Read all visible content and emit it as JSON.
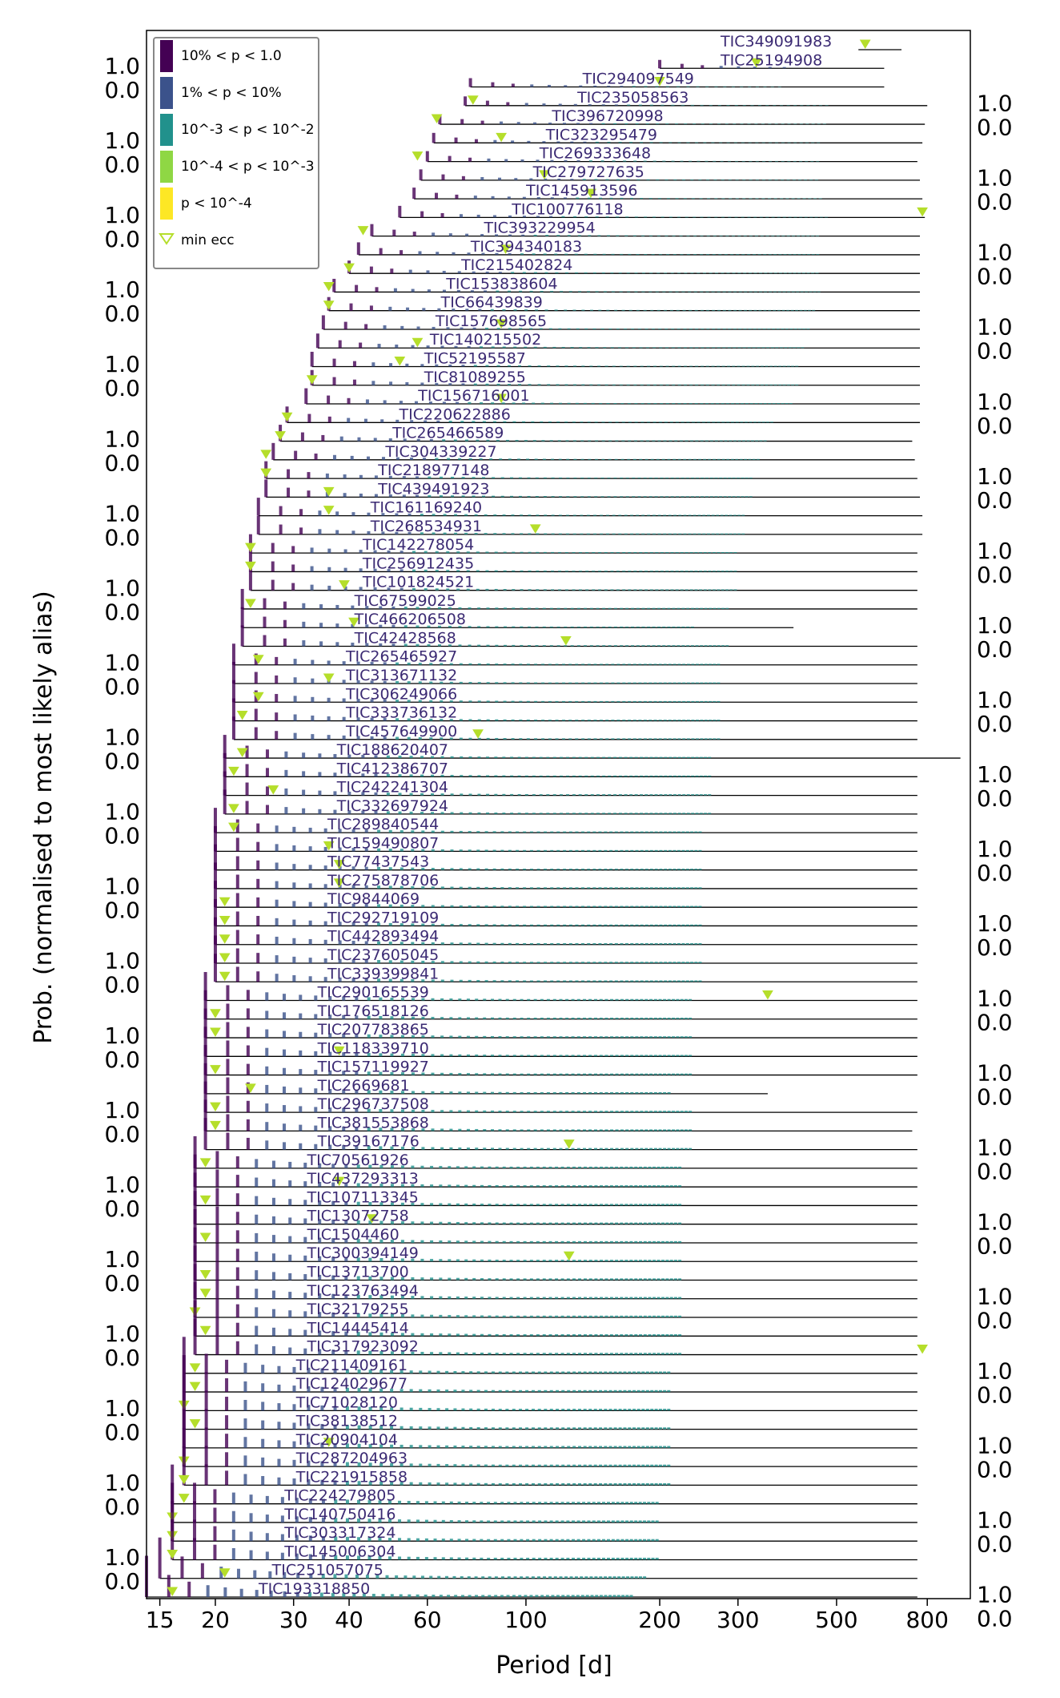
{
  "chart_data": {
    "type": "bar",
    "xlabel": "Period [d]",
    "ylabel": "Prob. (normalised to most likely alias)",
    "xscale": "log",
    "xlim": [
      14,
      1000
    ],
    "xticks": [
      15,
      20,
      30,
      40,
      60,
      100,
      200,
      300,
      500,
      800
    ],
    "xtick_labels": [
      "15",
      "20",
      "30",
      "40",
      "60",
      "100",
      "200",
      "300",
      "500",
      "800"
    ],
    "ytick_labels": [
      "1.0",
      "0.0"
    ],
    "grid": false,
    "legend_position": "top-left",
    "legend": [
      {
        "label": "10% < p < 1.0",
        "color": "#440154"
      },
      {
        "label": "1% < p < 10%",
        "color": "#3b528b"
      },
      {
        "label": "10^-3 < p < 10^-2",
        "color": "#21918c"
      },
      {
        "label": "10^-4 < p < 10^-3",
        "color": "#8fd744"
      },
      {
        "label": "p < 10^-4",
        "color": "#fde725"
      },
      {
        "label": "min ecc",
        "marker": "triangle-down-open",
        "color": "#b5de2b"
      }
    ],
    "series": [
      {
        "name": "TIC349091983",
        "min_period": 560,
        "max_period": 700,
        "min_ecc_period": 580
      },
      {
        "name": "TIC25194908",
        "min_period": 200,
        "max_period": 640,
        "min_ecc_period": 330
      },
      {
        "name": "TIC294097549",
        "min_period": 75,
        "max_period": 640,
        "min_ecc_period": 200
      },
      {
        "name": "TIC235058563",
        "min_period": 73,
        "max_period": 800,
        "min_ecc_period": 76
      },
      {
        "name": "TIC396720998",
        "min_period": 64,
        "max_period": 790,
        "min_ecc_period": 63
      },
      {
        "name": "TIC323295479",
        "min_period": 62,
        "max_period": 780,
        "min_ecc_period": 88
      },
      {
        "name": "TIC269333648",
        "min_period": 60,
        "max_period": 760,
        "min_ecc_period": 57
      },
      {
        "name": "TIC279727635",
        "min_period": 58,
        "max_period": 770,
        "min_ecc_period": 110
      },
      {
        "name": "TIC145913596",
        "min_period": 56,
        "max_period": 780,
        "min_ecc_period": 140
      },
      {
        "name": "TIC100776118",
        "min_period": 52,
        "max_period": 790,
        "min_ecc_period": 780
      },
      {
        "name": "TIC393229954",
        "min_period": 45,
        "max_period": 770,
        "min_ecc_period": 43
      },
      {
        "name": "TIC394340183",
        "min_period": 42,
        "max_period": 770,
        "min_ecc_period": 90
      },
      {
        "name": "TIC215402824",
        "min_period": 40,
        "max_period": 770,
        "min_ecc_period": 40
      },
      {
        "name": "TIC153838604",
        "min_period": 37,
        "max_period": 770,
        "min_ecc_period": 36
      },
      {
        "name": "TIC66439839",
        "min_period": 36,
        "max_period": 770,
        "min_ecc_period": 36
      },
      {
        "name": "TIC157698565",
        "min_period": 35,
        "max_period": 770,
        "min_ecc_period": 88
      },
      {
        "name": "TIC140215502",
        "min_period": 34,
        "max_period": 770,
        "min_ecc_period": 57
      },
      {
        "name": "TIC52195587",
        "min_period": 33,
        "max_period": 770,
        "min_ecc_period": 52
      },
      {
        "name": "TIC81089255",
        "min_period": 33,
        "max_period": 770,
        "min_ecc_period": 33
      },
      {
        "name": "TIC156716001",
        "min_period": 32,
        "max_period": 770,
        "min_ecc_period": 88
      },
      {
        "name": "TIC220622886",
        "min_period": 29,
        "max_period": 770,
        "min_ecc_period": 29
      },
      {
        "name": "TIC265466589",
        "min_period": 28,
        "max_period": 740,
        "min_ecc_period": 28
      },
      {
        "name": "TIC304339227",
        "min_period": 27,
        "max_period": 750,
        "min_ecc_period": 26
      },
      {
        "name": "TIC218977148",
        "min_period": 26,
        "max_period": 760,
        "min_ecc_period": 26
      },
      {
        "name": "TIC439491923",
        "min_period": 26,
        "max_period": 770,
        "min_ecc_period": 36
      },
      {
        "name": "TIC161169240",
        "min_period": 25,
        "max_period": 780,
        "min_ecc_period": 36
      },
      {
        "name": "TIC268534931",
        "min_period": 25,
        "max_period": 780,
        "min_ecc_period": 105
      },
      {
        "name": "TIC142278054",
        "min_period": 24,
        "max_period": 760,
        "min_ecc_period": 24
      },
      {
        "name": "TIC256912435",
        "min_period": 24,
        "max_period": 760,
        "min_ecc_period": 24
      },
      {
        "name": "TIC101824521",
        "min_period": 24,
        "max_period": 760,
        "min_ecc_period": 39
      },
      {
        "name": "TIC67599025",
        "min_period": 23,
        "max_period": 760,
        "min_ecc_period": 24
      },
      {
        "name": "TIC466206508",
        "min_period": 23,
        "max_period": 400,
        "min_ecc_period": 41
      },
      {
        "name": "TIC42428568",
        "min_period": 23,
        "max_period": 760,
        "min_ecc_period": 123
      },
      {
        "name": "TIC265465927",
        "min_period": 22,
        "max_period": 760,
        "min_ecc_period": 25
      },
      {
        "name": "TIC313671132",
        "min_period": 22,
        "max_period": 760,
        "min_ecc_period": 36
      },
      {
        "name": "TIC306249066",
        "min_period": 22,
        "max_period": 760,
        "min_ecc_period": 25
      },
      {
        "name": "TIC333736132",
        "min_period": 22,
        "max_period": 760,
        "min_ecc_period": 23
      },
      {
        "name": "TIC457649900",
        "min_period": 22,
        "max_period": 760,
        "min_ecc_period": 78
      },
      {
        "name": "TIC188620407",
        "min_period": 21,
        "max_period": 950,
        "min_ecc_period": 23
      },
      {
        "name": "TIC412386707",
        "min_period": 21,
        "max_period": 760,
        "min_ecc_period": 22
      },
      {
        "name": "TIC242241304",
        "min_period": 21,
        "max_period": 760,
        "min_ecc_period": 27
      },
      {
        "name": "TIC332697924",
        "min_period": 21,
        "max_period": 760,
        "min_ecc_period": 22
      },
      {
        "name": "TIC289840544",
        "min_period": 20,
        "max_period": 760,
        "min_ecc_period": 22
      },
      {
        "name": "TIC159490807",
        "min_period": 20,
        "max_period": 760,
        "min_ecc_period": 36
      },
      {
        "name": "TIC77437543",
        "min_period": 20,
        "max_period": 760,
        "min_ecc_period": 38
      },
      {
        "name": "TIC275878706",
        "min_period": 20,
        "max_period": 760,
        "min_ecc_period": 38
      },
      {
        "name": "TIC9844069",
        "min_period": 20,
        "max_period": 760,
        "min_ecc_period": 21
      },
      {
        "name": "TIC292719109",
        "min_period": 20,
        "max_period": 760,
        "min_ecc_period": 21
      },
      {
        "name": "TIC442893494",
        "min_period": 20,
        "max_period": 760,
        "min_ecc_period": 21
      },
      {
        "name": "TIC237605045",
        "min_period": 20,
        "max_period": 760,
        "min_ecc_period": 21
      },
      {
        "name": "TIC339399841",
        "min_period": 20,
        "max_period": 760,
        "min_ecc_period": 21
      },
      {
        "name": "TIC290165539",
        "min_period": 19,
        "max_period": 760,
        "min_ecc_period": 350
      },
      {
        "name": "TIC176518126",
        "min_period": 19,
        "max_period": 760,
        "min_ecc_period": 20
      },
      {
        "name": "TIC207783865",
        "min_period": 19,
        "max_period": 760,
        "min_ecc_period": 20
      },
      {
        "name": "TIC118339710",
        "min_period": 19,
        "max_period": 760,
        "min_ecc_period": 38
      },
      {
        "name": "TIC157119927",
        "min_period": 19,
        "max_period": 760,
        "min_ecc_period": 20
      },
      {
        "name": "TIC2669681",
        "min_period": 19,
        "max_period": 350,
        "min_ecc_period": 24
      },
      {
        "name": "TIC296737508",
        "min_period": 19,
        "max_period": 760,
        "min_ecc_period": 20
      },
      {
        "name": "TIC381553868",
        "min_period": 19,
        "max_period": 740,
        "min_ecc_period": 20
      },
      {
        "name": "TIC39167176",
        "min_period": 19,
        "max_period": 760,
        "min_ecc_period": 125
      },
      {
        "name": "TIC70561926",
        "min_period": 18,
        "max_period": 760,
        "min_ecc_period": 19
      },
      {
        "name": "TIC437293313",
        "min_period": 18,
        "max_period": 760,
        "min_ecc_period": 38
      },
      {
        "name": "TIC107113345",
        "min_period": 18,
        "max_period": 760,
        "min_ecc_period": 19
      },
      {
        "name": "TIC13072758",
        "min_period": 18,
        "max_period": 760,
        "min_ecc_period": 45
      },
      {
        "name": "TIC1504460",
        "min_period": 18,
        "max_period": 760,
        "min_ecc_period": 19
      },
      {
        "name": "TIC300394149",
        "min_period": 18,
        "max_period": 760,
        "min_ecc_period": 125
      },
      {
        "name": "TIC13713700",
        "min_period": 18,
        "max_period": 760,
        "min_ecc_period": 19
      },
      {
        "name": "TIC123763494",
        "min_period": 18,
        "max_period": 760,
        "min_ecc_period": 19
      },
      {
        "name": "TIC32179255",
        "min_period": 18,
        "max_period": 760,
        "min_ecc_period": 18
      },
      {
        "name": "TIC14445414",
        "min_period": 18,
        "max_period": 760,
        "min_ecc_period": 19
      },
      {
        "name": "TIC317923092",
        "min_period": 18,
        "max_period": 760,
        "min_ecc_period": 780
      },
      {
        "name": "TIC211409161",
        "min_period": 17,
        "max_period": 760,
        "min_ecc_period": 18
      },
      {
        "name": "TIC124029677",
        "min_period": 17,
        "max_period": 760,
        "min_ecc_period": 18
      },
      {
        "name": "TIC71028120",
        "min_period": 17,
        "max_period": 760,
        "min_ecc_period": 17
      },
      {
        "name": "TIC38138512",
        "min_period": 17,
        "max_period": 760,
        "min_ecc_period": 18
      },
      {
        "name": "TIC20904104",
        "min_period": 17,
        "max_period": 760,
        "min_ecc_period": 36
      },
      {
        "name": "TIC287204963",
        "min_period": 17,
        "max_period": 760,
        "min_ecc_period": 17
      },
      {
        "name": "TIC221915858",
        "min_period": 17,
        "max_period": 760,
        "min_ecc_period": 17
      },
      {
        "name": "TIC224279805",
        "min_period": 16,
        "max_period": 760,
        "min_ecc_period": 17
      },
      {
        "name": "TIC140750416",
        "min_period": 16,
        "max_period": 760,
        "min_ecc_period": 16
      },
      {
        "name": "TIC303317324",
        "min_period": 16,
        "max_period": 760,
        "min_ecc_period": 16
      },
      {
        "name": "TIC145006304",
        "min_period": 16,
        "max_period": 760,
        "min_ecc_period": 16
      },
      {
        "name": "TIC251057075",
        "min_period": 15,
        "max_period": 760,
        "min_ecc_period": 21
      },
      {
        "name": "TIC193318850",
        "min_period": 14,
        "max_period": 760,
        "min_ecc_period": 16
      }
    ]
  }
}
